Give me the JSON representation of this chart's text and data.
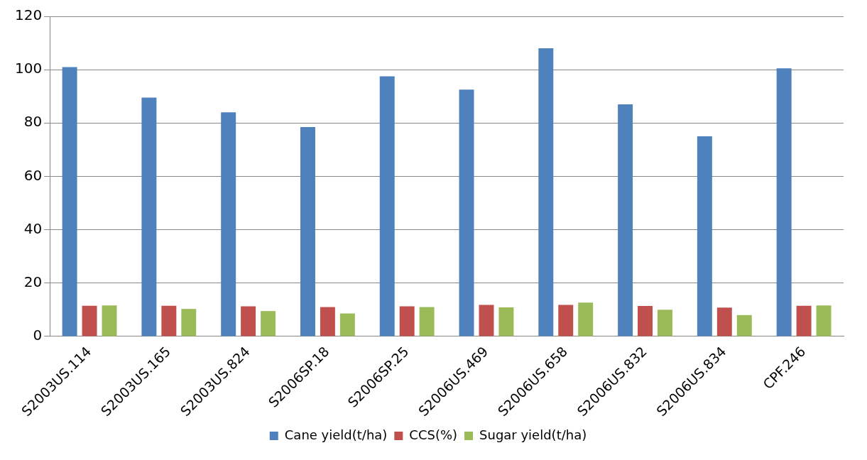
{
  "chart_data": {
    "type": "bar",
    "categories": [
      "S2003US.114",
      "S2003US.165",
      "S2003US.824",
      "S2006SP.18",
      "S2006SP.25",
      "S2006US.469",
      "S2006US.658",
      "S2006US.832",
      "S2006US.834",
      "CPF.246"
    ],
    "series": [
      {
        "name": "Cane yield(t/ha)",
        "color": "#4f81bd",
        "values": [
          101,
          89.5,
          84,
          78.5,
          97.5,
          92.5,
          108,
          87,
          75,
          100.5
        ]
      },
      {
        "name": "CCS(%)",
        "color": "#c0504d",
        "values": [
          11.5,
          11.5,
          11.3,
          11,
          11.3,
          11.8,
          11.8,
          11.4,
          10.8,
          11.5
        ]
      },
      {
        "name": "Sugar yield(t/ha)",
        "color": "#9bbb59",
        "values": [
          11.6,
          10.3,
          9.5,
          8.6,
          11,
          10.9,
          12.7,
          10,
          8,
          11.6
        ]
      }
    ],
    "ylim": [
      0,
      120
    ],
    "yticks": [
      0,
      20,
      40,
      60,
      80,
      100,
      120
    ],
    "grid": "y",
    "legend": "bottom"
  }
}
